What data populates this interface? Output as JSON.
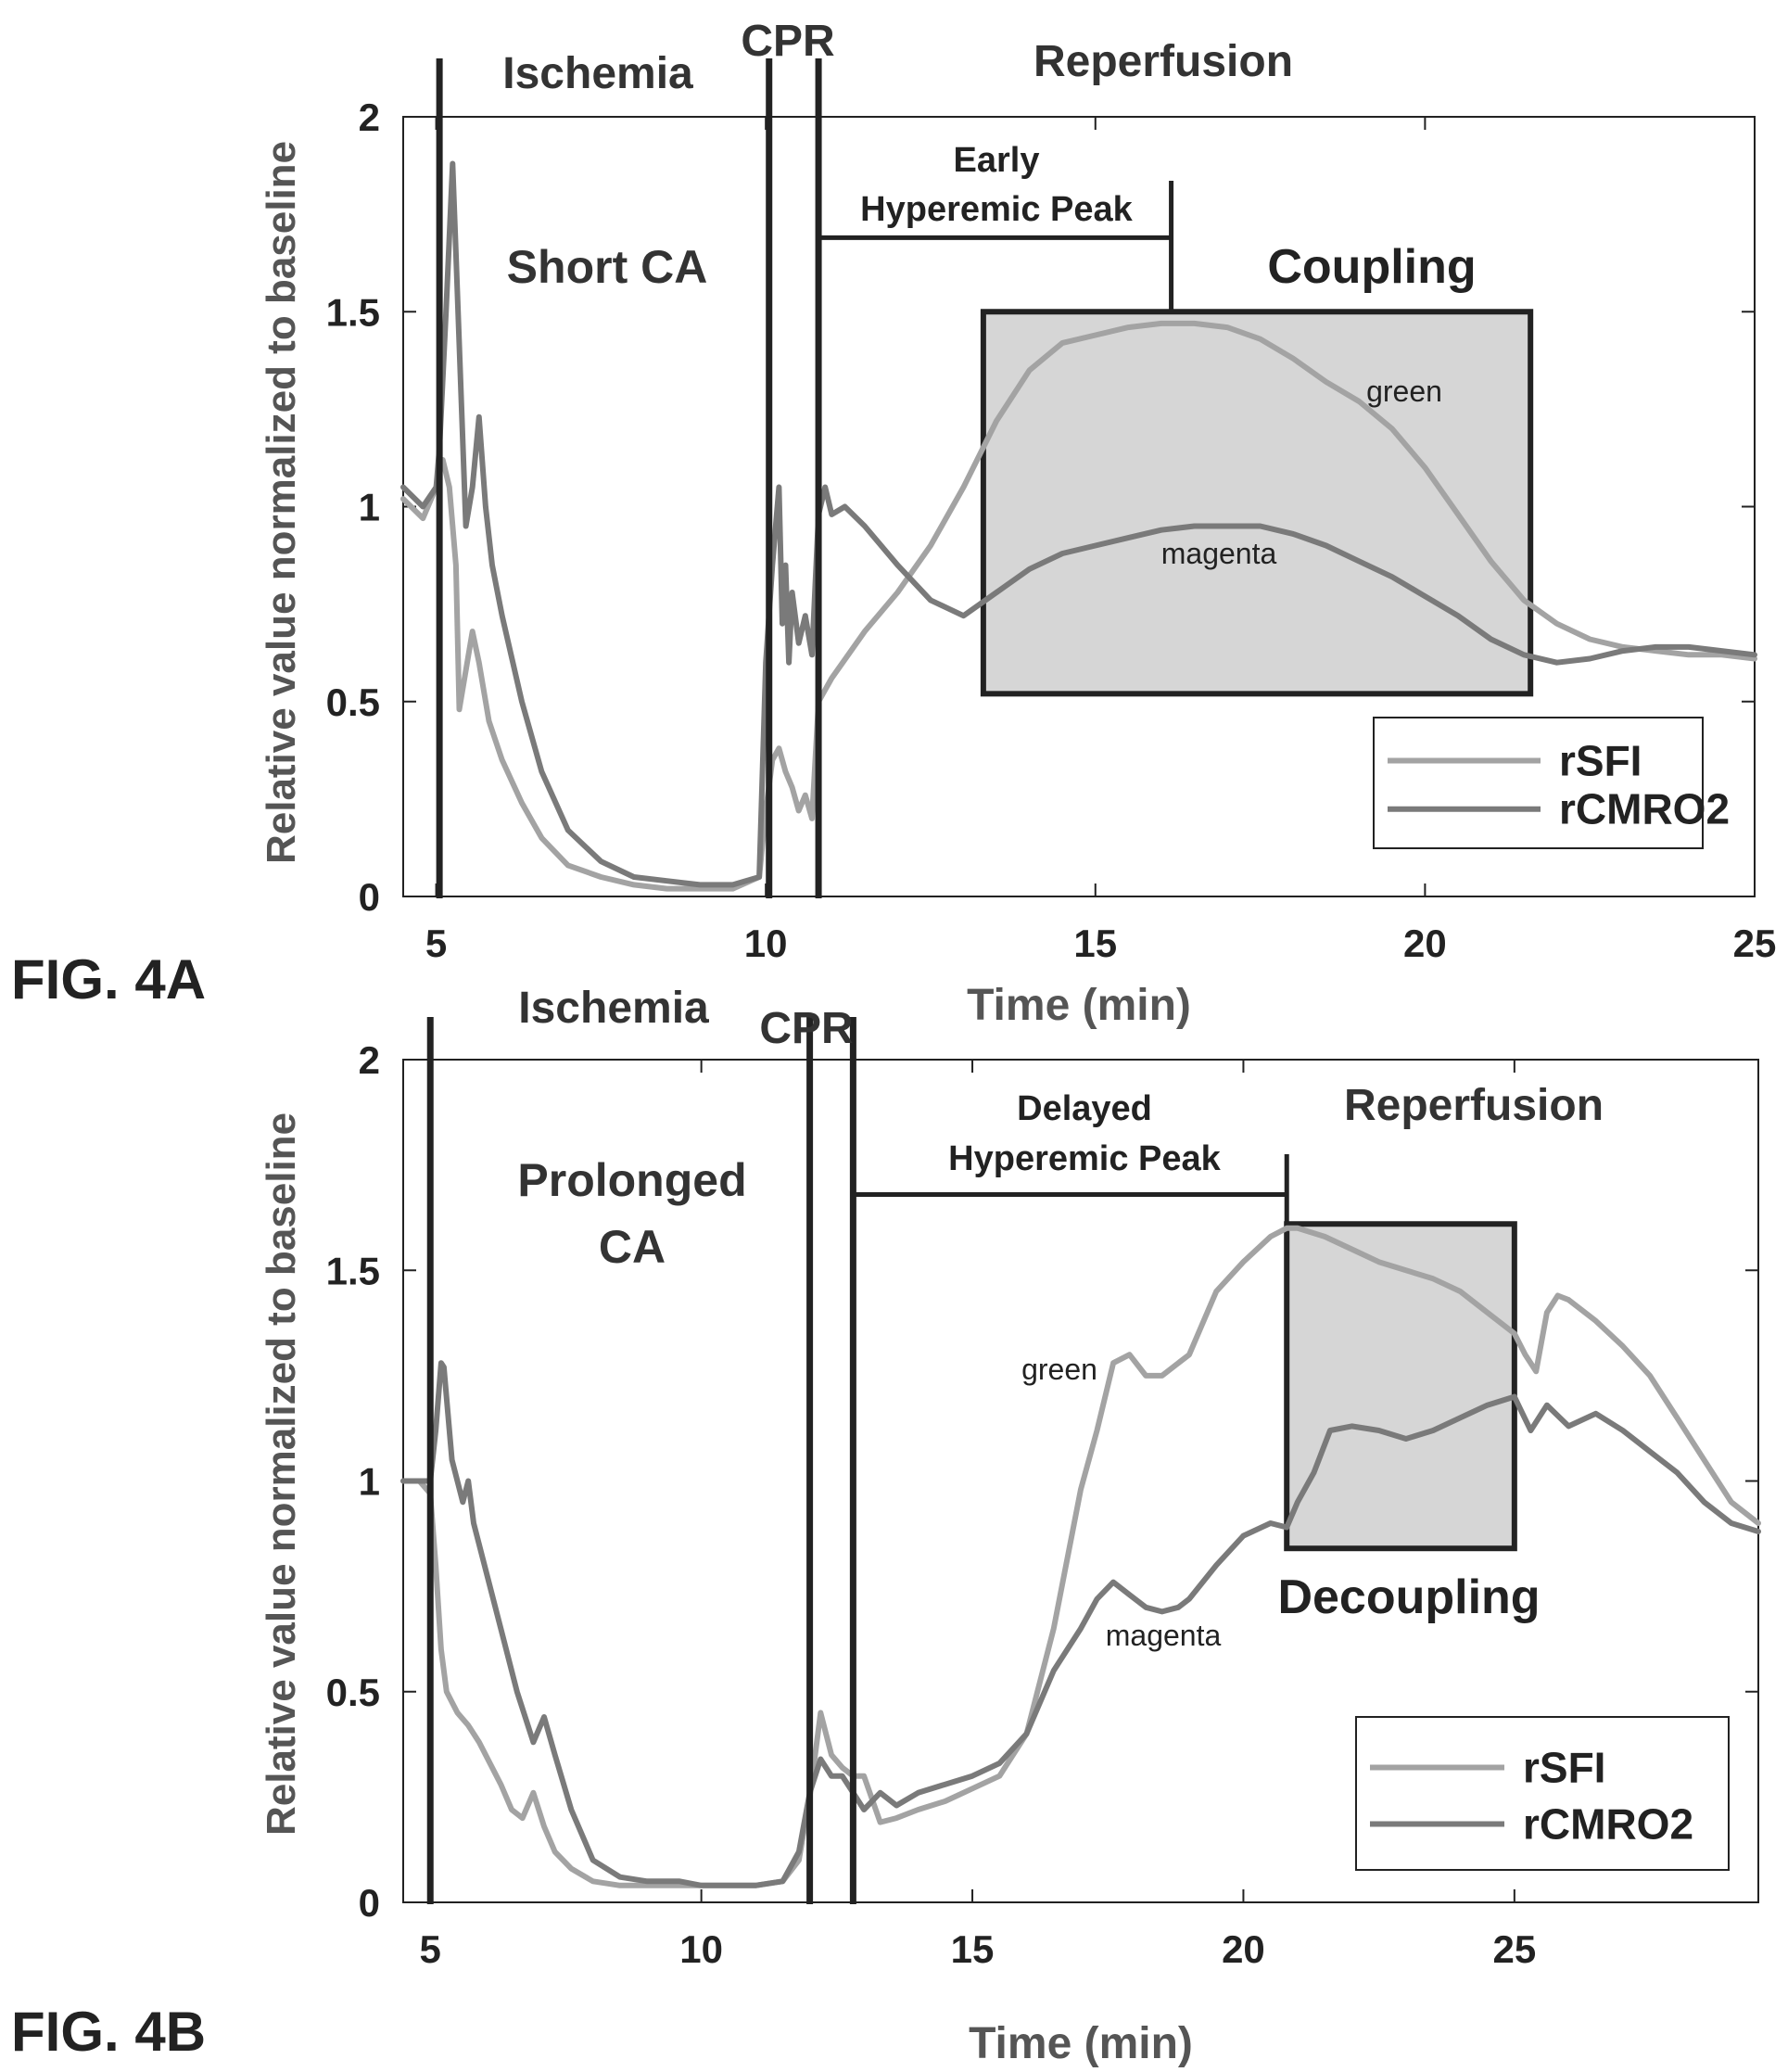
{
  "figure_labels": {
    "a": "FIG. 4A",
    "b": "FIG. 4B"
  },
  "colors": {
    "rSFI": "#a3a3a3",
    "rCMRO2": "#7a7a7a",
    "box_fill": "#d6d6d6",
    "axis": "#222222",
    "marker": "#222222"
  },
  "chart_data": [
    {
      "type": "line",
      "xlabel": "Time (min)",
      "ylabel": "Relative value normalized to baseline",
      "xlim": [
        4.5,
        25
      ],
      "ylim": [
        0,
        2
      ],
      "xticks": [
        5,
        10,
        15,
        20,
        25
      ],
      "yticks": [
        0,
        0.5,
        1,
        1.5,
        2
      ],
      "ytick_labels": [
        "0",
        "0.5",
        "1",
        "1.5",
        "2"
      ],
      "grid": false,
      "legend": {
        "position": "bottom-right",
        "entries": [
          "rSFI",
          "rCMRO2"
        ]
      },
      "phase_labels": {
        "ischemia": "Ischemia",
        "cpr": "CPR",
        "reperfusion": "Reperfusion"
      },
      "condition_label": [
        "Short CA"
      ],
      "peak_label": [
        "Early",
        "Hyperemic Peak"
      ],
      "box_label": "Coupling",
      "curve_labels": {
        "upper": "green",
        "lower": "magenta"
      },
      "markers_x": [
        5.05,
        10.05,
        10.8
      ],
      "peak_bracket": {
        "x_start": 10.8,
        "x_end": 16.15,
        "y": 1.69
      },
      "shaded_box": {
        "x_start": 13.3,
        "x_end": 21.6,
        "y_start": 0.52,
        "y_end": 1.5
      },
      "series": [
        {
          "name": "rSFI",
          "x": [
            4.5,
            4.8,
            5.0,
            5.05,
            5.1,
            5.2,
            5.3,
            5.35,
            5.45,
            5.55,
            5.65,
            5.8,
            6.0,
            6.3,
            6.6,
            7.0,
            7.5,
            8.0,
            8.5,
            9.0,
            9.5,
            9.9,
            10.0,
            10.1,
            10.2,
            10.3,
            10.4,
            10.5,
            10.6,
            10.7,
            10.8,
            11.0,
            11.5,
            12.0,
            12.5,
            13.0,
            13.5,
            14.0,
            14.5,
            15.0,
            15.5,
            16.0,
            16.5,
            17.0,
            17.5,
            18.0,
            18.5,
            19.0,
            19.5,
            20.0,
            20.5,
            21.0,
            21.5,
            22.0,
            22.5,
            23.0,
            23.5,
            24.0,
            24.5,
            25.0
          ],
          "y": [
            1.02,
            0.97,
            1.05,
            1.1,
            1.12,
            1.05,
            0.85,
            0.48,
            0.58,
            0.68,
            0.6,
            0.45,
            0.35,
            0.24,
            0.15,
            0.08,
            0.05,
            0.03,
            0.02,
            0.02,
            0.02,
            0.05,
            0.22,
            0.35,
            0.38,
            0.32,
            0.28,
            0.22,
            0.26,
            0.2,
            0.5,
            0.56,
            0.68,
            0.78,
            0.9,
            1.05,
            1.22,
            1.35,
            1.42,
            1.44,
            1.46,
            1.47,
            1.47,
            1.46,
            1.43,
            1.38,
            1.32,
            1.27,
            1.2,
            1.1,
            0.98,
            0.86,
            0.76,
            0.7,
            0.66,
            0.64,
            0.63,
            0.62,
            0.62,
            0.61
          ]
        },
        {
          "name": "rCMRO2",
          "x": [
            4.5,
            4.8,
            5.0,
            5.05,
            5.15,
            5.25,
            5.3,
            5.45,
            5.55,
            5.65,
            5.75,
            5.85,
            6.0,
            6.3,
            6.6,
            7.0,
            7.5,
            8.0,
            8.5,
            9.0,
            9.5,
            9.9,
            10.0,
            10.1,
            10.2,
            10.25,
            10.3,
            10.35,
            10.4,
            10.5,
            10.6,
            10.7,
            10.8,
            10.9,
            11.0,
            11.2,
            11.5,
            12.0,
            12.5,
            13.0,
            13.5,
            14.0,
            14.5,
            15.0,
            15.5,
            16.0,
            16.5,
            17.0,
            17.5,
            18.0,
            18.5,
            19.0,
            19.5,
            20.0,
            20.5,
            21.0,
            21.5,
            22.0,
            22.5,
            23.0,
            23.5,
            24.0,
            24.5,
            25.0
          ],
          "y": [
            1.05,
            1.0,
            1.05,
            1.15,
            1.5,
            1.88,
            1.65,
            0.95,
            1.05,
            1.23,
            1.0,
            0.85,
            0.72,
            0.5,
            0.32,
            0.17,
            0.09,
            0.05,
            0.04,
            0.03,
            0.03,
            0.05,
            0.6,
            0.85,
            1.05,
            0.7,
            0.85,
            0.6,
            0.78,
            0.65,
            0.72,
            0.62,
            0.98,
            1.05,
            0.98,
            1.0,
            0.95,
            0.85,
            0.76,
            0.72,
            0.78,
            0.84,
            0.88,
            0.9,
            0.92,
            0.94,
            0.95,
            0.95,
            0.95,
            0.93,
            0.9,
            0.86,
            0.82,
            0.77,
            0.72,
            0.66,
            0.62,
            0.6,
            0.61,
            0.63,
            0.64,
            0.64,
            0.63,
            0.62
          ]
        }
      ]
    },
    {
      "type": "line",
      "xlabel": "Time (min)",
      "ylabel": "Relative value normalized to baseline",
      "xlim": [
        4.5,
        29.5
      ],
      "ylim": [
        0,
        2
      ],
      "xticks": [
        5,
        10,
        15,
        20,
        25
      ],
      "yticks": [
        0,
        0.5,
        1,
        1.5,
        2
      ],
      "ytick_labels": [
        "0",
        "0.5",
        "1",
        "1.5",
        "2"
      ],
      "grid": false,
      "legend": {
        "position": "bottom-right",
        "entries": [
          "rSFI",
          "rCMRO2"
        ]
      },
      "phase_labels": {
        "ischemia": "Ischemia",
        "cpr": "CPR",
        "reperfusion": "Reperfusion"
      },
      "condition_label": [
        "Prolonged",
        "CA"
      ],
      "peak_label": [
        "Delayed",
        "Hyperemic Peak"
      ],
      "box_label": "Decoupling",
      "curve_labels": {
        "upper": "green",
        "lower": "magenta"
      },
      "markers_x": [
        5.0,
        12.0,
        12.8
      ],
      "peak_bracket": {
        "x_start": 12.8,
        "x_end": 20.8,
        "y": 1.68
      },
      "shaded_box": {
        "x_start": 20.8,
        "x_end": 25.0,
        "y_start": 0.84,
        "y_end": 1.61
      },
      "series": [
        {
          "name": "rSFI",
          "x": [
            4.5,
            4.8,
            5.0,
            5.1,
            5.2,
            5.3,
            5.5,
            5.7,
            5.9,
            6.1,
            6.3,
            6.5,
            6.7,
            6.9,
            7.1,
            7.3,
            7.6,
            8.0,
            8.5,
            9.0,
            9.3,
            9.6,
            10.0,
            10.5,
            11.0,
            11.5,
            11.8,
            12.0,
            12.2,
            12.4,
            12.6,
            12.8,
            13.0,
            13.3,
            13.6,
            14.0,
            14.5,
            15.0,
            15.5,
            16.0,
            16.5,
            17.0,
            17.3,
            17.6,
            17.9,
            18.2,
            18.5,
            18.8,
            19.0,
            19.5,
            20.0,
            20.5,
            20.8,
            21.0,
            21.5,
            22.0,
            22.5,
            23.0,
            23.5,
            24.0,
            24.5,
            25.0,
            25.2,
            25.4,
            25.6,
            25.8,
            26.0,
            26.5,
            27.0,
            27.5,
            28.0,
            28.5,
            29.0,
            29.5
          ],
          "y": [
            1.0,
            1.0,
            0.97,
            0.8,
            0.6,
            0.5,
            0.45,
            0.42,
            0.38,
            0.33,
            0.28,
            0.22,
            0.2,
            0.26,
            0.18,
            0.12,
            0.08,
            0.05,
            0.04,
            0.04,
            0.04,
            0.04,
            0.04,
            0.04,
            0.04,
            0.05,
            0.1,
            0.25,
            0.45,
            0.35,
            0.32,
            0.3,
            0.3,
            0.19,
            0.2,
            0.22,
            0.24,
            0.27,
            0.3,
            0.4,
            0.65,
            0.98,
            1.12,
            1.28,
            1.3,
            1.25,
            1.25,
            1.28,
            1.3,
            1.45,
            1.52,
            1.58,
            1.6,
            1.6,
            1.58,
            1.55,
            1.52,
            1.5,
            1.48,
            1.45,
            1.4,
            1.35,
            1.3,
            1.26,
            1.4,
            1.44,
            1.43,
            1.38,
            1.32,
            1.25,
            1.15,
            1.05,
            0.95,
            0.9
          ]
        },
        {
          "name": "rCMRO2",
          "x": [
            4.5,
            4.8,
            5.0,
            5.1,
            5.2,
            5.25,
            5.4,
            5.6,
            5.7,
            5.8,
            6.0,
            6.3,
            6.6,
            6.9,
            7.1,
            7.3,
            7.6,
            8.0,
            8.5,
            9.0,
            9.3,
            9.6,
            10.0,
            10.5,
            11.0,
            11.5,
            11.8,
            12.0,
            12.2,
            12.4,
            12.6,
            12.8,
            13.0,
            13.3,
            13.6,
            14.0,
            14.5,
            15.0,
            15.5,
            16.0,
            16.5,
            17.0,
            17.3,
            17.6,
            17.9,
            18.2,
            18.5,
            18.8,
            19.0,
            19.5,
            20.0,
            20.5,
            20.8,
            21.0,
            21.3,
            21.6,
            22.0,
            22.5,
            23.0,
            23.5,
            24.0,
            24.5,
            25.0,
            25.3,
            25.6,
            26.0,
            26.5,
            27.0,
            27.5,
            28.0,
            28.5,
            29.0,
            29.5
          ],
          "y": [
            1.0,
            1.0,
            1.0,
            1.12,
            1.28,
            1.27,
            1.05,
            0.95,
            1.0,
            0.9,
            0.8,
            0.65,
            0.5,
            0.38,
            0.44,
            0.35,
            0.22,
            0.1,
            0.06,
            0.05,
            0.05,
            0.05,
            0.04,
            0.04,
            0.04,
            0.05,
            0.12,
            0.26,
            0.34,
            0.3,
            0.3,
            0.26,
            0.22,
            0.26,
            0.23,
            0.26,
            0.28,
            0.3,
            0.33,
            0.4,
            0.55,
            0.65,
            0.72,
            0.76,
            0.73,
            0.7,
            0.69,
            0.7,
            0.72,
            0.8,
            0.87,
            0.9,
            0.89,
            0.95,
            1.02,
            1.12,
            1.13,
            1.12,
            1.1,
            1.12,
            1.15,
            1.18,
            1.2,
            1.12,
            1.18,
            1.13,
            1.16,
            1.12,
            1.07,
            1.02,
            0.95,
            0.9,
            0.88
          ]
        }
      ]
    }
  ]
}
